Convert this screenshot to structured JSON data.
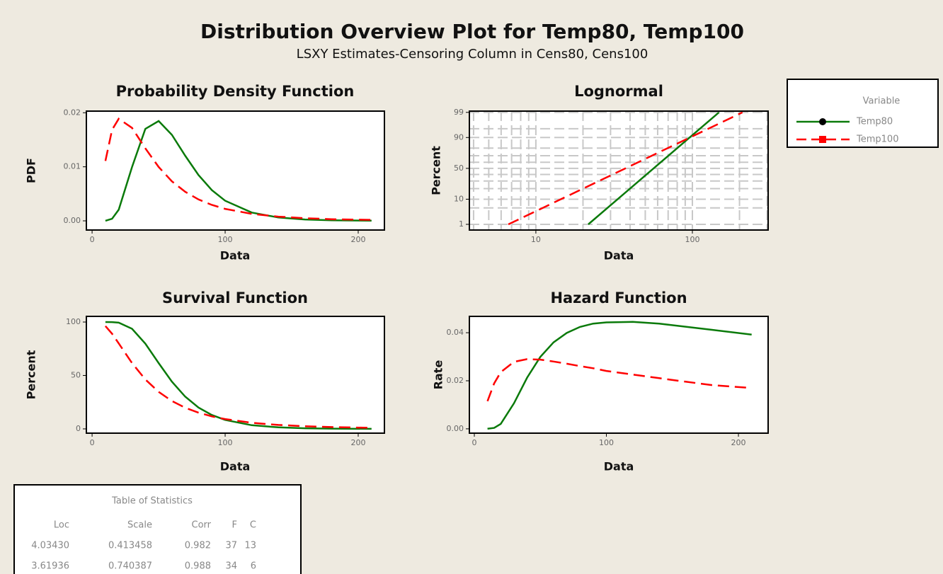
{
  "title": "Distribution Overview Plot for Temp80, Temp100",
  "subtitle": "LSXY Estimates-Censoring Column in Cens80, Cens100",
  "legend_title": "Variable",
  "chart_data": [
    {
      "type": "line",
      "title": "Probability Density Function",
      "x_label": "Data",
      "y_label": "PDF",
      "x": [
        10,
        15,
        20,
        30,
        40,
        50,
        60,
        70,
        80,
        90,
        100,
        120,
        140,
        160,
        180,
        210
      ],
      "series": [
        {
          "name": "Temp80",
          "color": "#0a7a0a",
          "style": "solid",
          "marker": "circle",
          "values": [
            1.5e-05,
            0.00038,
            0.00206,
            0.00996,
            0.01701,
            0.01847,
            0.01591,
            0.01205,
            0.00847,
            0.00569,
            0.00372,
            0.00153,
            0.00062,
            0.00025,
            0.00011,
            3e-05
          ]
        },
        {
          "name": "Temp100",
          "color": "#ff0000",
          "style": "dashed",
          "marker": "square",
          "values": [
            0.01108,
            0.01684,
            0.01889,
            0.0172,
            0.01341,
            0.00997,
            0.00731,
            0.00537,
            0.00396,
            0.00295,
            0.00222,
            0.00129,
            0.00078,
            0.00049,
            0.00031,
            0.00017
          ]
        }
      ],
      "xlim": [
        -4.3,
        219.7
      ],
      "xticks": [
        0,
        100,
        200
      ],
      "ylim": [
        -0.0017,
        0.0203
      ],
      "yticks": [
        {
          "value": 0,
          "label": "0.00"
        },
        {
          "value": 0.01,
          "label": "0.01"
        },
        {
          "value": 0.02,
          "label": "0.02"
        }
      ]
    },
    {
      "type": "line",
      "title": "Lognormal",
      "x_label": "Data",
      "y_label": "Percent",
      "xscale": "log",
      "yscale": "probit",
      "grid": true,
      "series": [
        {
          "name": "Temp80",
          "color": "#0a7a0a",
          "style": "solid",
          "x": [
            21.6,
            147.8
          ],
          "values": [
            1,
            99
          ]
        },
        {
          "name": "Temp100",
          "color": "#ff0000",
          "style": "dashed",
          "x": [
            6.67,
            208.9
          ],
          "values": [
            1,
            99
          ]
        }
      ],
      "xlim": [
        3.76,
        304.8
      ],
      "xticks": [
        10,
        100
      ],
      "xminor": [
        4,
        5,
        6,
        7,
        8,
        9,
        20,
        30,
        40,
        50,
        60,
        70,
        80,
        90,
        200,
        300
      ],
      "ylim": [
        0.52,
        99.13
      ],
      "yticks": [
        1,
        10,
        50,
        90,
        99
      ],
      "yminor": [
        5,
        20,
        30,
        40,
        60,
        70,
        80,
        95
      ]
    },
    {
      "type": "line",
      "title": "Survival Function",
      "x_label": "Data",
      "y_label": "Percent",
      "x": [
        10,
        15,
        20,
        30,
        40,
        50,
        60,
        70,
        80,
        90,
        100,
        120,
        140,
        160,
        180,
        210
      ],
      "series": [
        {
          "name": "Temp80",
          "color": "#0a7a0a",
          "style": "solid",
          "values": [
            100,
            99.93,
            99.4,
            93.7,
            79.8,
            61.6,
            44.2,
            30.2,
            20.0,
            13.0,
            8.4,
            3.4,
            1.4,
            0.6,
            0.25,
            0.07
          ]
        },
        {
          "name": "Temp100",
          "color": "#ff0000",
          "style": "dashed",
          "values": [
            96.2,
            89.1,
            80.0,
            61.6,
            46.3,
            34.6,
            26.1,
            19.8,
            15.2,
            11.7,
            9.2,
            5.7,
            3.7,
            2.5,
            1.7,
            1.0
          ]
        }
      ],
      "xlim": [
        -4.3,
        219.7
      ],
      "xticks": [
        0,
        100,
        200
      ],
      "ylim": [
        -4,
        105.3
      ],
      "yticks": [
        0,
        50,
        100
      ]
    },
    {
      "type": "line",
      "title": "Hazard Function",
      "x_label": "Data",
      "y_label": "Rate",
      "x": [
        10,
        15,
        20,
        30,
        40,
        50,
        60,
        70,
        80,
        90,
        100,
        120,
        140,
        160,
        180,
        210
      ],
      "series": [
        {
          "name": "Temp80",
          "color": "#0a7a0a",
          "style": "solid",
          "values": [
            2e-05,
            0.00038,
            0.00207,
            0.01063,
            0.02132,
            0.02998,
            0.036,
            0.0399,
            0.0424,
            0.0438,
            0.0443,
            0.0445,
            0.0438,
            0.0425,
            0.0412,
            0.0392
          ]
        },
        {
          "name": "Temp100",
          "color": "#ff0000",
          "style": "dashed",
          "values": [
            0.0115,
            0.0189,
            0.0236,
            0.0279,
            0.029,
            0.0288,
            0.028,
            0.0271,
            0.0261,
            0.0252,
            0.0241,
            0.0226,
            0.0211,
            0.0196,
            0.0182,
            0.017
          ]
        }
      ],
      "xlim": [
        -3.75,
        222.5
      ],
      "xticks": [
        0,
        100,
        200
      ],
      "ylim": [
        -0.0018,
        0.0468
      ],
      "yticks": [
        {
          "value": 0,
          "label": "0.00"
        },
        {
          "value": 0.02,
          "label": "0.02"
        },
        {
          "value": 0.04,
          "label": "0.04"
        }
      ]
    }
  ],
  "table": {
    "title": "Table of Statistics",
    "columns": [
      "Loc",
      "Scale",
      "Corr",
      "F",
      "C"
    ],
    "rows": [
      [
        "4.03430",
        "0.413458",
        "0.982",
        "37",
        "13"
      ],
      [
        "3.61936",
        "0.740387",
        "0.988",
        "34",
        "6"
      ]
    ]
  }
}
